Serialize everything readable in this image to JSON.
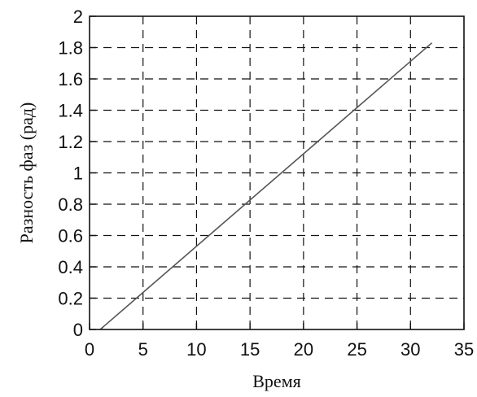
{
  "chart_data": {
    "type": "line",
    "title": "",
    "xlabel": "Время",
    "ylabel": "Разность фаз (рад)",
    "xlim": [
      0,
      35
    ],
    "ylim": [
      0,
      2
    ],
    "xticks": [
      0,
      5,
      10,
      15,
      20,
      25,
      30,
      35
    ],
    "xtick_labels": [
      "0",
      "5",
      "10",
      "15",
      "20",
      "25",
      "30",
      "35"
    ],
    "yticks": [
      0,
      0.2,
      0.4,
      0.6,
      0.8,
      1,
      1.2,
      1.4,
      1.6,
      1.8,
      2
    ],
    "ytick_labels": [
      "0",
      "0.2",
      "0.4",
      "0.6",
      "0.8",
      "1",
      "1.2",
      "1.4",
      "1.6",
      "1.8",
      "2"
    ],
    "grid": true,
    "grid_style": "dashed",
    "legend": false,
    "series": [
      {
        "color": "#555555",
        "x": [
          1.0,
          32.0
        ],
        "y": [
          0.0,
          1.83
        ]
      }
    ]
  }
}
